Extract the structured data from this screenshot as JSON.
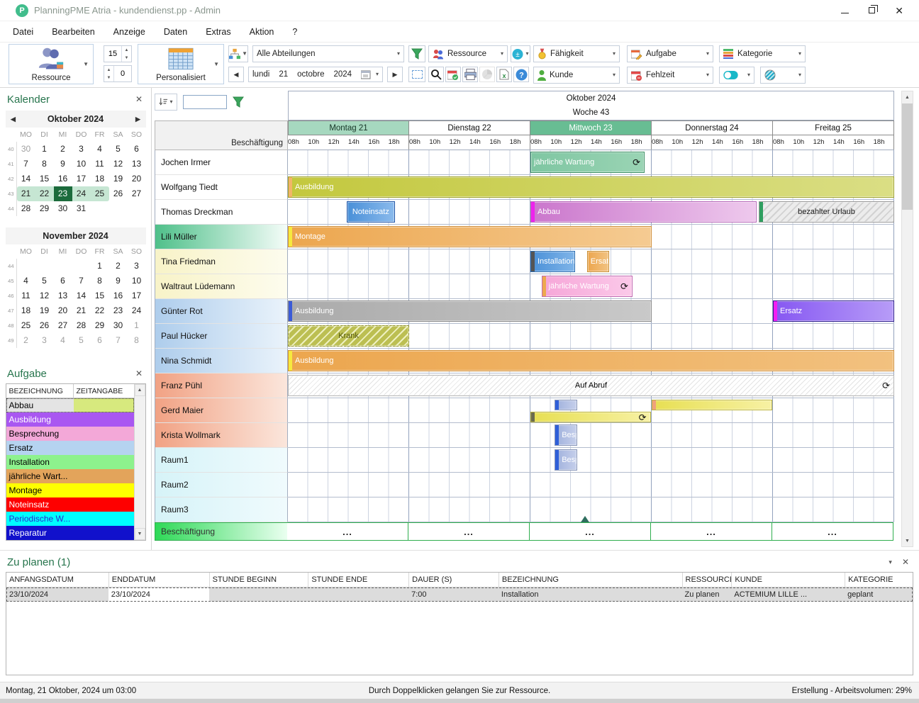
{
  "window": {
    "title": "PlanningPME Atria - kundendienst.pp - Admin"
  },
  "menu": {
    "items": [
      "Datei",
      "Bearbeiten",
      "Anzeige",
      "Daten",
      "Extras",
      "Aktion",
      "?"
    ]
  },
  "toolbar": {
    "resource_label": "Ressource",
    "spin_top": "15",
    "spin_bottom": "0",
    "personalized_label": "Personalisiert",
    "departments_value": "Alle Abteilungen",
    "date": {
      "weekday": "lundi",
      "day": "21",
      "month": "octobre",
      "year": "2024"
    },
    "combo_ressource": "Ressource",
    "combo_faehigkeit": "Fähigkeit",
    "combo_aufgabe": "Aufgabe",
    "combo_kategorie": "Kategorie",
    "combo_kunde": "Kunde",
    "combo_fehlzeit": "Fehlzeit"
  },
  "calendar_panel": {
    "title": "Kalender",
    "months": [
      {
        "title": "Oktober 2024",
        "nav": true,
        "day_headers": [
          "MO",
          "DI",
          "MI",
          "DO",
          "FR",
          "SA",
          "SO"
        ],
        "weeks": [
          {
            "num": "40",
            "days": [
              {
                "t": "30",
                "c": "muted"
              },
              {
                "t": "1"
              },
              {
                "t": "2"
              },
              {
                "t": "3"
              },
              {
                "t": "4"
              },
              {
                "t": "5"
              },
              {
                "t": "6"
              }
            ]
          },
          {
            "num": "41",
            "days": [
              {
                "t": "7"
              },
              {
                "t": "8"
              },
              {
                "t": "9"
              },
              {
                "t": "10"
              },
              {
                "t": "11"
              },
              {
                "t": "12"
              },
              {
                "t": "13"
              }
            ]
          },
          {
            "num": "42",
            "days": [
              {
                "t": "14"
              },
              {
                "t": "15"
              },
              {
                "t": "16"
              },
              {
                "t": "17"
              },
              {
                "t": "18"
              },
              {
                "t": "19"
              },
              {
                "t": "20"
              }
            ]
          },
          {
            "num": "43",
            "days": [
              {
                "t": "21",
                "c": "band bs"
              },
              {
                "t": "22",
                "c": "band"
              },
              {
                "t": "23",
                "c": "cur"
              },
              {
                "t": "24",
                "c": "band"
              },
              {
                "t": "25",
                "c": "band be"
              },
              {
                "t": "26"
              },
              {
                "t": "27"
              }
            ]
          },
          {
            "num": "44",
            "days": [
              {
                "t": "28"
              },
              {
                "t": "29"
              },
              {
                "t": "30"
              },
              {
                "t": "31"
              },
              {
                "t": ""
              },
              {
                "t": ""
              },
              {
                "t": ""
              }
            ]
          }
        ]
      },
      {
        "title": "November 2024",
        "nav": false,
        "day_headers": [
          "MO",
          "DI",
          "MI",
          "DO",
          "FR",
          "SA",
          "SO"
        ],
        "weeks": [
          {
            "num": "44",
            "days": [
              {
                "t": ""
              },
              {
                "t": ""
              },
              {
                "t": ""
              },
              {
                "t": ""
              },
              {
                "t": "1"
              },
              {
                "t": "2"
              },
              {
                "t": "3"
              }
            ]
          },
          {
            "num": "45",
            "days": [
              {
                "t": "4"
              },
              {
                "t": "5"
              },
              {
                "t": "6"
              },
              {
                "t": "7"
              },
              {
                "t": "8"
              },
              {
                "t": "9"
              },
              {
                "t": "10"
              }
            ]
          },
          {
            "num": "46",
            "days": [
              {
                "t": "11"
              },
              {
                "t": "12"
              },
              {
                "t": "13"
              },
              {
                "t": "14"
              },
              {
                "t": "15"
              },
              {
                "t": "16"
              },
              {
                "t": "17"
              }
            ]
          },
          {
            "num": "47",
            "days": [
              {
                "t": "18"
              },
              {
                "t": "19"
              },
              {
                "t": "20"
              },
              {
                "t": "21"
              },
              {
                "t": "22"
              },
              {
                "t": "23"
              },
              {
                "t": "24"
              }
            ]
          },
          {
            "num": "48",
            "days": [
              {
                "t": "25"
              },
              {
                "t": "26"
              },
              {
                "t": "27"
              },
              {
                "t": "28"
              },
              {
                "t": "29"
              },
              {
                "t": "30"
              },
              {
                "t": "1",
                "c": "muted"
              }
            ]
          },
          {
            "num": "49",
            "days": [
              {
                "t": "2",
                "c": "muted"
              },
              {
                "t": "3",
                "c": "muted"
              },
              {
                "t": "4",
                "c": "muted"
              },
              {
                "t": "5",
                "c": "muted"
              },
              {
                "t": "6",
                "c": "muted"
              },
              {
                "t": "7",
                "c": "muted"
              },
              {
                "t": "8",
                "c": "muted"
              }
            ]
          }
        ]
      }
    ]
  },
  "tasks_panel": {
    "title": "Aufgabe",
    "columns": [
      "BEZEICHNUNG",
      "ZEITANGABE"
    ],
    "tasks": [
      {
        "label": "Abbau",
        "bg": "#e4e4e4",
        "fg": "#000",
        "bg2": "#d7e97e",
        "selected": true
      },
      {
        "label": "Ausbildung",
        "bg": "#a957f1",
        "fg": "#fff"
      },
      {
        "label": "Besprechung",
        "bg": "#f3a8d8",
        "fg": "#000"
      },
      {
        "label": "Ersatz",
        "bg": "#b5d3f0",
        "fg": "#000"
      },
      {
        "label": "Installation",
        "bg": "#8df28d",
        "fg": "#000"
      },
      {
        "label": "jährliche Wart...",
        "bg": "#e3a45b",
        "fg": "#000"
      },
      {
        "label": "Montage",
        "bg": "#feff00",
        "fg": "#000"
      },
      {
        "label": "Noteinsatz",
        "bg": "#fe0000",
        "fg": "#fff"
      },
      {
        "label": "Periodische W...",
        "bg": "#00feff",
        "fg": "#2a2ad0"
      },
      {
        "label": "Reparatur",
        "bg": "#1111cc",
        "fg": "#fff"
      }
    ]
  },
  "schedule": {
    "month_label": "Oktober 2024",
    "week_label": "Woche 43",
    "corner_label": "Beschäftigung",
    "hours": [
      "08h",
      "10h",
      "12h",
      "14h",
      "16h",
      "18h"
    ],
    "days": [
      {
        "label": "Montag 21",
        "bg": "#a6d8bf",
        "fg": "#173527"
      },
      {
        "label": "Dienstag 22",
        "bg": "#ffffff",
        "fg": "#111111"
      },
      {
        "label": "Mittwoch 23",
        "bg": "#68bd93",
        "fg": "#ffffff"
      },
      {
        "label": "Donnerstag 24",
        "bg": "#ffffff",
        "fg": "#111111"
      },
      {
        "label": "Freitag 25",
        "bg": "#ffffff",
        "fg": "#111111"
      }
    ],
    "marker": {
      "d": 2,
      "h": 13.3
    },
    "resources": [
      {
        "name": "Jochen Irmer",
        "style": "plain",
        "bars": [
          {
            "label": "jährliche Wartung",
            "s": [
              2,
              8
            ],
            "e": [
              2,
              19.3
            ],
            "body": [
              "#7fc6a2",
              "#9ad4b4"
            ],
            "border": "#3f9166",
            "text": "#fff",
            "recur": true
          }
        ]
      },
      {
        "name": "Wolfgang Tiedt",
        "style": "plain",
        "bars": [
          {
            "label": "Ausbildung",
            "s": [
              0,
              8
            ],
            "e": [
              4,
              20
            ],
            "body": [
              "#c3c83e",
              "#dade84"
            ],
            "strip": "#f2b568",
            "border": "#9ea22c",
            "text": "#fff"
          }
        ]
      },
      {
        "name": "Thomas Dreckman",
        "style": "plain",
        "bars": [
          {
            "label": "Noteinsatz",
            "s": [
              0,
              13.8
            ],
            "e": [
              0,
              18.6
            ],
            "body": [
              "#4a90d8",
              "#8abaec"
            ],
            "border": "#2458a8",
            "text": "#fff",
            "center": true
          },
          {
            "label": "Abbau",
            "s": [
              2,
              8
            ],
            "e": [
              3,
              18.4
            ],
            "body": [
              "#ca76cc",
              "#eec9ed"
            ],
            "strip": "#ee22ee",
            "border": "#b768b9",
            "text": "#fff"
          },
          {
            "label": "bezahlter Urlaub",
            "s": [
              3,
              18.6
            ],
            "e": [
              4,
              20
            ],
            "hatch": "gray",
            "strip": "#2f9e60",
            "border": "#9a9a9a",
            "text": "#1a1a1a",
            "center": true
          }
        ]
      },
      {
        "name": "Lili Müller",
        "style": "green",
        "bars": [
          {
            "label": "Montage",
            "s": [
              0,
              8
            ],
            "e": [
              2,
              20
            ],
            "body": [
              "#eca64e",
              "#f5cb92"
            ],
            "strip": "#f6e93e",
            "border": "#d1913d",
            "text": "#fff"
          }
        ]
      },
      {
        "name": "Tina Friedman",
        "style": "cream",
        "bars": [
          {
            "label": "Installation",
            "s": [
              2,
              8
            ],
            "e": [
              2,
              12.4
            ],
            "body": [
              "#4a90d8",
              "#7fb4e8"
            ],
            "strip": "#555555",
            "border": "#2b6cb0",
            "text": "#fff"
          },
          {
            "label": "Ersatz",
            "s": [
              2,
              13.6
            ],
            "e": [
              2,
              15.8
            ],
            "body": [
              "#eca64e",
              "#f2c382"
            ],
            "border": "#c98f35",
            "text": "#fff"
          }
        ]
      },
      {
        "name": "Waltraut Lüdemann",
        "style": "cream",
        "bars": [
          {
            "label": "jährliche Wartung",
            "s": [
              2,
              9.1
            ],
            "e": [
              2,
              18.1
            ],
            "body": [
              "#f6a6d8",
              "#fbc9e9"
            ],
            "strip": "#eda94f",
            "border": "#c26ab2",
            "text": "#fff",
            "recur": true
          }
        ]
      },
      {
        "name": "Günter Rot",
        "style": "blue",
        "bars": [
          {
            "label": "Ausbildung",
            "s": [
              0,
              8
            ],
            "e": [
              2,
              20
            ],
            "body": [
              "#aaaaaa",
              "#c9c9c9"
            ],
            "strip": "#3b5bd7",
            "border": "#8c8c8c",
            "text": "#fff"
          },
          {
            "label": "Ersatz",
            "s": [
              4,
              8
            ],
            "e": [
              4,
              20
            ],
            "body": [
              "#8657f2",
              "#b79cf7"
            ],
            "strip": "#f21ff2",
            "border": "#2e1e8e",
            "text": "#fff"
          }
        ]
      },
      {
        "name": "Paul Hücker",
        "style": "blue",
        "bars": [
          {
            "label": "Krank",
            "s": [
              0,
              8
            ],
            "e": [
              0,
              20
            ],
            "hatch": "krank",
            "border": "#8e9030",
            "dashed": true,
            "text": "#55590f",
            "center": true
          }
        ]
      },
      {
        "name": "Nina Schmidt",
        "style": "blue",
        "bars": [
          {
            "label": "Ausbildung",
            "s": [
              0,
              8
            ],
            "e": [
              4,
              20
            ],
            "body": [
              "#eca64e",
              "#f2c17f"
            ],
            "strip": "#f6e93e",
            "border": "#d1913d",
            "text": "#fff"
          }
        ]
      },
      {
        "name": "Franz Pühl",
        "style": "salmon",
        "bars": [
          {
            "label": "Auf Abruf",
            "s": [
              0,
              8
            ],
            "e": [
              4,
              20
            ],
            "hatch": "light",
            "border": "#b5b5b5",
            "text": "#000",
            "center": true,
            "recur": true
          }
        ]
      },
      {
        "name": "Gerd Maier",
        "style": "salmon",
        "lanes": 2,
        "bars": [
          {
            "label": "",
            "s": [
              2,
              10.4
            ],
            "e": [
              2,
              12.6
            ],
            "lane": 0,
            "body": [
              "#9fb0dc",
              "#c5cfeb"
            ],
            "strip": "#2f5fd8",
            "border": "#8795b8",
            "text": "#fff"
          },
          {
            "label": "",
            "s": [
              3,
              8
            ],
            "e": [
              3,
              19.9
            ],
            "lane": 0,
            "body": [
              "#e7df52",
              "#f7f1a4"
            ],
            "strip": "#f0a27a",
            "border": "#bdb53e",
            "text": "#fff"
          },
          {
            "label": "",
            "s": [
              2,
              8
            ],
            "e": [
              2,
              19.9
            ],
            "lane": 1,
            "body": [
              "#e7df52",
              "#f7f1a4"
            ],
            "strip": "#6b6b50",
            "border": "#bdb53e",
            "text": "#fff",
            "recur": true
          }
        ]
      },
      {
        "name": "Krista Wollmark",
        "style": "salmon",
        "bars": [
          {
            "label": "Besprechung",
            "s": [
              2,
              10.4
            ],
            "e": [
              2,
              12.6
            ],
            "body": [
              "#9fb0dc",
              "#c5cfeb"
            ],
            "strip": "#2f5fd8",
            "border": "#8795b8",
            "text": "#fff"
          }
        ]
      },
      {
        "name": "Raum1",
        "style": "cyan",
        "bars": [
          {
            "label": "Besprechung",
            "s": [
              2,
              10.4
            ],
            "e": [
              2,
              12.6
            ],
            "body": [
              "#9fb0dc",
              "#c5cfeb"
            ],
            "strip": "#2f5fd8",
            "border": "#8795b8",
            "text": "#fff"
          }
        ]
      },
      {
        "name": "Raum2",
        "style": "cyan",
        "bars": []
      },
      {
        "name": "Raum3",
        "style": "cyan",
        "bars": []
      }
    ],
    "footer": {
      "label": "Beschäftigung",
      "cell_text": "..."
    }
  },
  "zu_planen": {
    "title": "Zu planen (1)",
    "columns": [
      "ANFANGSDATUM",
      "ENDDATUM",
      "STUNDE BEGINN",
      "STUNDE ENDE",
      "DAUER (S)",
      "BEZEICHNUNG",
      "RESSOURCE",
      "KUNDE",
      "KATEGORIE"
    ],
    "rows": [
      [
        "23/10/2024",
        "23/10/2024",
        "",
        "",
        "7:00",
        "Installation",
        "Zu planen",
        "ACTEMIUM LILLE ...",
        "geplant"
      ]
    ]
  },
  "status_bar": {
    "left": "Montag, 21 Oktober, 2024 um 03:00",
    "center": "Durch Doppelklicken gelangen Sie zur Ressource.",
    "right": "Erstellung - Arbeitsvolumen: 29%"
  }
}
